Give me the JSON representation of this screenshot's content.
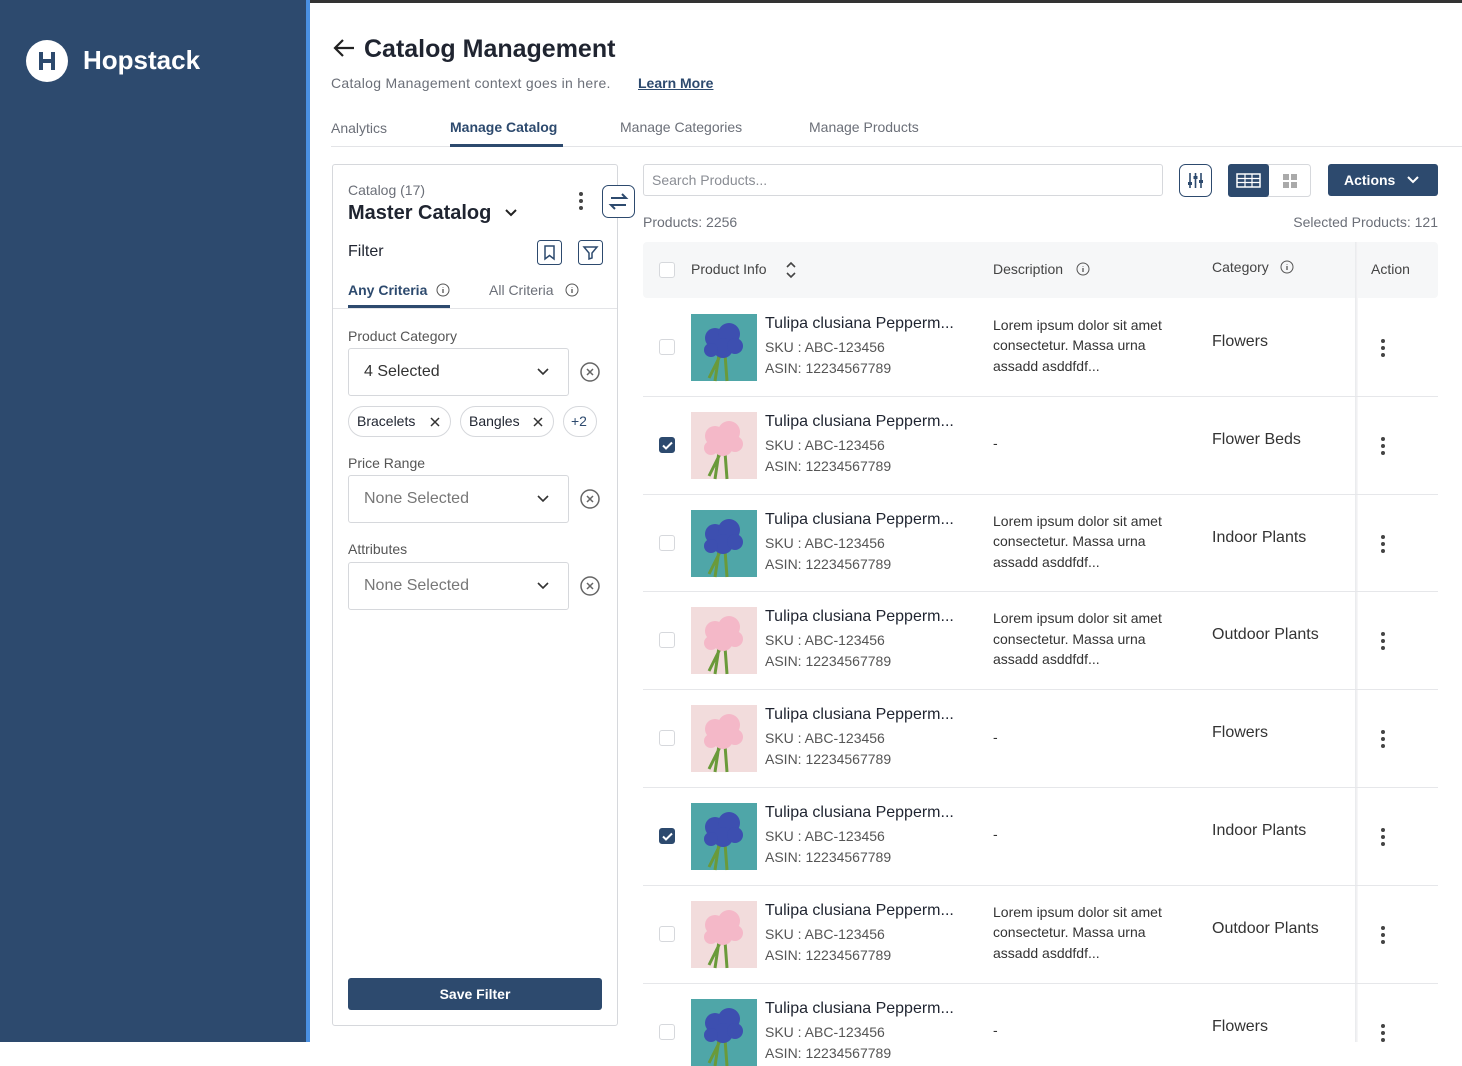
{
  "sidebar": {
    "brand": "Hopstack"
  },
  "header": {
    "title": "Catalog Management",
    "context": "Catalog Management context goes in here.",
    "link": "Learn More"
  },
  "tabs": [
    "Analytics",
    "Manage Catalog",
    "Manage Categories",
    "Manage Products"
  ],
  "filter_panel": {
    "catalog_label": "Catalog (17)",
    "catalog_name": "Master Catalog",
    "filter_title": "Filter",
    "criteria_tabs": [
      "Any Criteria",
      "All Criteria"
    ],
    "fields": [
      {
        "label": "Product Category",
        "value": "4 Selected",
        "chips": [
          "Bracelets",
          "Bangles",
          "+2"
        ]
      },
      {
        "label": "Price Range",
        "value": "None Selected"
      },
      {
        "label": "Attributes",
        "value": "None Selected"
      }
    ],
    "save_button": "Save Filter"
  },
  "toolbar": {
    "search_placeholder": "Search Products...",
    "actions_button": "Actions",
    "products_count": "Products: 2256",
    "selected_count": "Selected Products: 121"
  },
  "table": {
    "columns": [
      "Product Info",
      "Description",
      "Category",
      "Action"
    ],
    "rows": [
      {
        "checked": false,
        "thumb_color": "#4fa6a8",
        "name": "Tulipa clusiana Pepperm...",
        "sku": "SKU : ABC-123456",
        "asin": "ASIN: 12234567789",
        "description": "Lorem ipsum dolor sit amet consectetur. Massa urna assadd asddfdf...",
        "category": "Flowers"
      },
      {
        "checked": true,
        "thumb_color": "#f2dcdc",
        "name": "Tulipa clusiana Pepperm...",
        "sku": "SKU : ABC-123456",
        "asin": "ASIN: 12234567789",
        "description": "-",
        "category": "Flower Beds"
      },
      {
        "checked": false,
        "thumb_color": "#4fa6a8",
        "name": "Tulipa clusiana Pepperm...",
        "sku": "SKU : ABC-123456",
        "asin": "ASIN: 12234567789",
        "description": "Lorem ipsum dolor sit amet consectetur. Massa urna assadd asddfdf...",
        "category": "Indoor Plants"
      },
      {
        "checked": false,
        "thumb_color": "#f2dcdc",
        "name": "Tulipa clusiana Pepperm...",
        "sku": "SKU : ABC-123456",
        "asin": "ASIN: 12234567789",
        "description": "Lorem ipsum dolor sit amet consectetur. Massa urna assadd asddfdf...",
        "category": "Outdoor Plants"
      },
      {
        "checked": false,
        "thumb_color": "#f2dcdc",
        "name": "Tulipa clusiana Pepperm...",
        "sku": "SKU : ABC-123456",
        "asin": "ASIN: 12234567789",
        "description": "-",
        "category": "Flowers"
      },
      {
        "checked": true,
        "thumb_color": "#4fa6a8",
        "name": "Tulipa clusiana Pepperm...",
        "sku": "SKU : ABC-123456",
        "asin": "ASIN: 12234567789",
        "description": "-",
        "category": "Indoor Plants"
      },
      {
        "checked": false,
        "thumb_color": "#f2dcdc",
        "name": "Tulipa clusiana Pepperm...",
        "sku": "SKU : ABC-123456",
        "asin": "ASIN: 12234567789",
        "description": "Lorem ipsum dolor sit amet consectetur. Massa urna assadd asddfdf...",
        "category": "Outdoor Plants"
      },
      {
        "checked": false,
        "thumb_color": "#4fa6a8",
        "name": "Tulipa clusiana Pepperm...",
        "sku": "SKU : ABC-123456",
        "asin": "ASIN: 12234567789",
        "description": "-",
        "category": "Flowers"
      }
    ]
  }
}
